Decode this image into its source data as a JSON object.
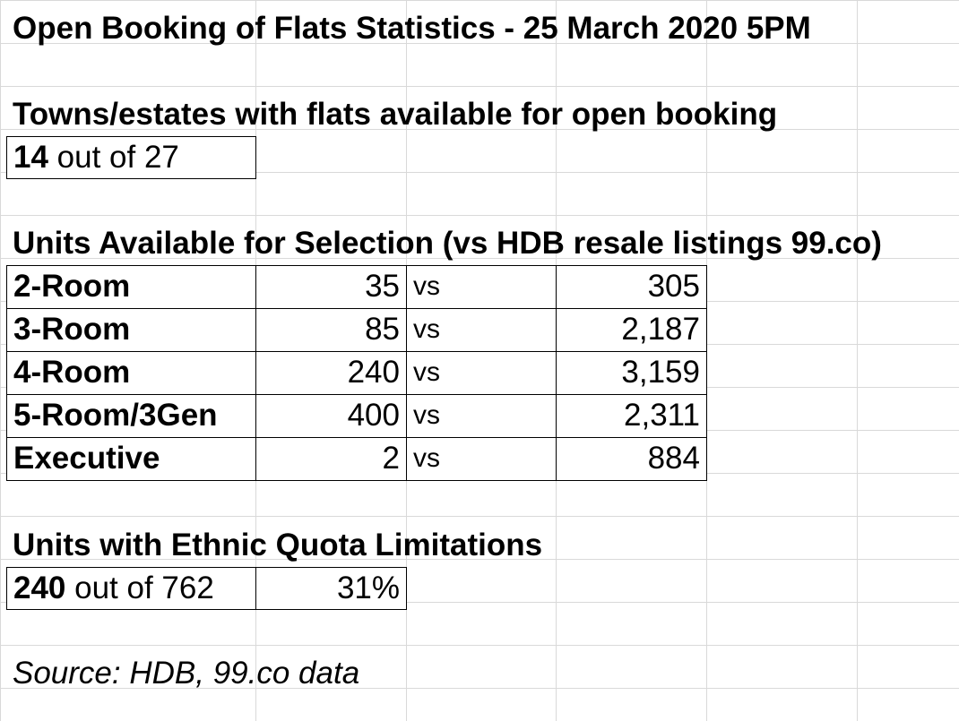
{
  "title": "Open Booking of Flats Statistics - 25 March 2020 5PM",
  "towns": {
    "heading": "Towns/estates with flats available for open booking",
    "count": "14",
    "suffix": " out of 27"
  },
  "units": {
    "heading": "Units Available for Selection (vs HDB resale listings 99.co)",
    "rows": [
      {
        "type": "2-Room",
        "available": "35",
        "vs": "vs",
        "resale": "305"
      },
      {
        "type": "3-Room",
        "available": "85",
        "vs": "vs",
        "resale": "2,187"
      },
      {
        "type": "4-Room",
        "available": "240",
        "vs": "vs",
        "resale": "3,159"
      },
      {
        "type": "5-Room/3Gen",
        "available": "400",
        "vs": "vs",
        "resale": "2,311"
      },
      {
        "type": "Executive",
        "available": "2",
        "vs": "vs",
        "resale": "884"
      }
    ]
  },
  "ethnic": {
    "heading": "Units with Ethnic Quota Limitations",
    "count": "240",
    "suffix": " out of 762",
    "percent": "31%"
  },
  "source": "Source: HDB, 99.co data"
}
